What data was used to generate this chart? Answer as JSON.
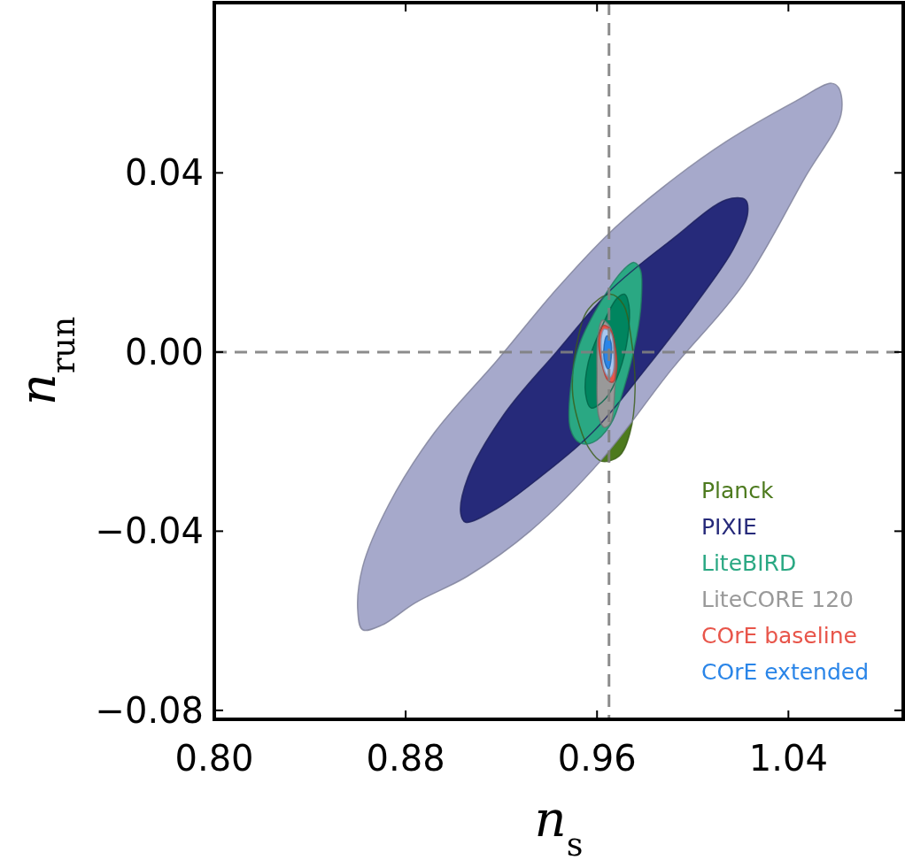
{
  "chart_data": {
    "type": "area",
    "xlabel": "n$_{s}$",
    "ylabel": "n$_{run}$",
    "xlim": [
      0.8,
      1.088
    ],
    "ylim": [
      -0.082,
      0.078
    ],
    "xticks": [
      {
        "value": 0.8,
        "label": "0.80"
      },
      {
        "value": 0.88,
        "label": "0.88"
      },
      {
        "value": 0.96,
        "label": "0.96"
      },
      {
        "value": 1.04,
        "label": "1.04"
      }
    ],
    "yticks": [
      {
        "value": -0.08,
        "label": "−0.08"
      },
      {
        "value": -0.04,
        "label": "−0.04"
      },
      {
        "value": 0,
        "label": "0.00"
      },
      {
        "value": 0.04,
        "label": "0.04"
      }
    ],
    "legend": "bottom right",
    "grid": false,
    "ref_lines": [
      {
        "axis": "x",
        "value": 0.965,
        "color": "#808080",
        "line_style": "dashed"
      },
      {
        "axis": "y",
        "value": 0,
        "color": "#808080",
        "line_style": "dashed"
      }
    ],
    "series": [
      {
        "name": "Planck",
        "color": "#4d7a1e",
        "x": [
          0.9656,
          0.9711,
          0.9741,
          0.9759,
          0.9737,
          0.9693,
          0.9619,
          0.9563,
          0.9515,
          0.9497,
          0.9515,
          0.9563
        ],
        "values": [
          0.0129,
          0.0105,
          0.0036,
          -0.0083,
          -0.0182,
          -0.0232,
          -0.0244,
          -0.0212,
          -0.0143,
          -0.0083,
          0.0016,
          0.0095
        ]
      },
      {
        "color": "#a6a9cb",
        "x": [
          0.86,
          0.862,
          0.87,
          0.884,
          0.906,
          0.932,
          0.962,
          0.991,
          1.021,
          1.047,
          1.062,
          1.061,
          1.058,
          1.043,
          1.014,
          0.988,
          0.966,
          0.943,
          0.918,
          0.892,
          0.873,
          0.862
        ],
        "values": [
          -0.058,
          -0.062,
          -0.061,
          -0.056,
          -0.05,
          -0.04,
          -0.024,
          -0.004,
          0.015,
          0.039,
          0.053,
          0.059,
          0.06,
          0.056,
          0.047,
          0.037,
          0.027,
          0.014,
          -0.002,
          -0.018,
          -0.034,
          -0.048
        ]
      },
      {
        "name": "PIXIE",
        "color": "#262a7a",
        "x": [
          0.903,
          0.906,
          0.921,
          0.943,
          0.966,
          0.991,
          1.014,
          1.022,
          1.023,
          1.017,
          1.003,
          0.98,
          0.958,
          0.936,
          0.918,
          0.905
        ],
        "values": [
          -0.036,
          -0.028,
          -0.014,
          0.0,
          0.014,
          0.025,
          0.034,
          0.034,
          0.031,
          0.023,
          0.012,
          -0.004,
          -0.018,
          -0.028,
          -0.035,
          -0.038
        ]
      },
      {
        "name": "LiteBIRD",
        "color": "#2aa883",
        "x": [
          0.9755,
          0.9781,
          0.9785,
          0.9766,
          0.9711,
          0.9656,
          0.9582,
          0.9526,
          0.9489,
          0.9489,
          0.9526,
          0.9619,
          0.9711
        ],
        "values": [
          0.02,
          0.0184,
          0.0115,
          0.0036,
          -0.0083,
          -0.0162,
          -0.0202,
          -0.0202,
          -0.0172,
          -0.0083,
          0.0016,
          0.0115,
          0.0184
        ]
      },
      {
        "color": "#00855f",
        "x": [
          0.9715,
          0.9733,
          0.9729,
          0.9693,
          0.9637,
          0.9575,
          0.9552,
          0.9563,
          0.9619,
          0.9682
        ],
        "values": [
          0.0129,
          0.0105,
          0.0036,
          -0.0044,
          -0.0103,
          -0.0125,
          -0.0093,
          -0.0024,
          0.0055,
          0.0119
        ]
      },
      {
        "name": "LiteCORE 120",
        "color": "#999999",
        "x": [
          0.9622,
          0.9656,
          0.9674,
          0.9674,
          0.9656,
          0.963,
          0.9607,
          0.96,
          0.9604
        ],
        "values": [
          0.0071,
          0.0055,
          -0.0004,
          -0.0083,
          -0.0158,
          -0.0168,
          -0.0143,
          -0.0044,
          0.0036
        ]
      },
      {
        "name": "COrE baseline",
        "color": "#e8554a",
        "x": [
          0.9626,
          0.9656,
          0.9678,
          0.9681,
          0.9667,
          0.9645,
          0.9619,
          0.9607
        ],
        "values": [
          0.0059,
          0.0051,
          0.0006,
          -0.0044,
          -0.0067,
          -0.0063,
          -0.0024,
          0.0026
        ]
      },
      {
        "color": "#a8c8f0",
        "x": [
          0.963,
          0.9656,
          0.967,
          0.9667,
          0.9652,
          0.9633,
          0.9619,
          0.9619
        ],
        "values": [
          0.0051,
          0.0044,
          -0.0004,
          -0.0044,
          -0.0057,
          -0.0044,
          -0.0004,
          0.0036
        ]
      },
      {
        "name": "COrE extended",
        "color": "#2a85e8",
        "x": [
          0.9641,
          0.9656,
          0.9659,
          0.9648,
          0.9633,
          0.963
        ],
        "values": [
          0.0036,
          0.0026,
          -0.0014,
          -0.0038,
          -0.0024,
          0.0016
        ]
      }
    ]
  }
}
